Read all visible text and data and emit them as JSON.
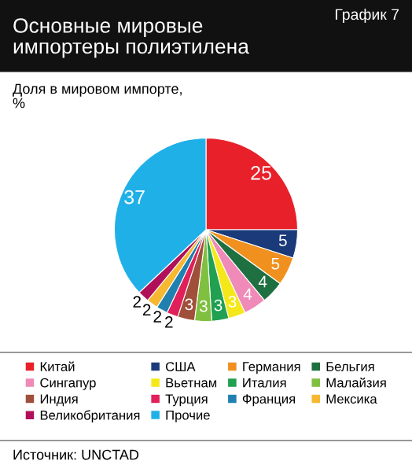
{
  "chart_data": {
    "type": "pie",
    "title": "Основные мировые\nимпортеры полиэтилена",
    "subtitle": "Доля в мировом импорте,\n%",
    "annotations": [
      "График 7",
      "Источник: UNCTAD"
    ],
    "categories": [
      "Китай",
      "США",
      "Германия",
      "Бельгия",
      "Сингапур",
      "Вьетнам",
      "Италия",
      "Малайзия",
      "Индия",
      "Турция",
      "Франция",
      "Мексика",
      "Великобритания",
      "Прочие"
    ],
    "values": [
      25,
      5,
      5,
      4,
      4,
      3,
      3,
      3,
      3,
      2,
      2,
      2,
      2,
      37
    ],
    "colors": [
      "#e8202a",
      "#1a3a7a",
      "#f0901e",
      "#1e7040",
      "#f08ab8",
      "#f5e81a",
      "#20a050",
      "#80c040",
      "#a0503a",
      "#e0205a",
      "#2080b0",
      "#f5b830",
      "#b0105a",
      "#20b0e8"
    ],
    "data_labels": true,
    "legend": "bottom"
  }
}
